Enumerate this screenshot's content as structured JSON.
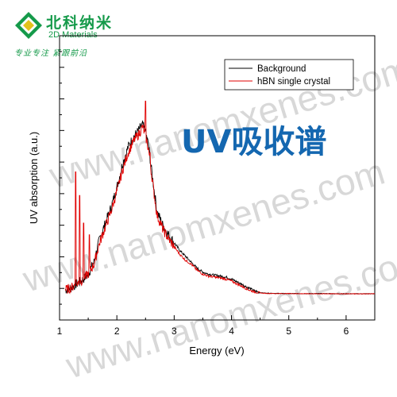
{
  "logo": {
    "brand_cn": "北科纳米",
    "brand_en": "2D Materials",
    "slogan": "专业专注 紧跟前沿",
    "colors": {
      "green": "#159a4a",
      "yellow": "#e2c21c"
    }
  },
  "watermark": {
    "text": "www.nanomxenes.com",
    "color": "#b9b9b9"
  },
  "overlay_title": {
    "text": "UV吸收谱",
    "color": "#1467b0"
  },
  "chart_data": {
    "type": "line",
    "xlabel": "Energy (eV)",
    "ylabel": "UV absorption (a.u.)",
    "xlim": [
      1,
      6.5
    ],
    "ylim": [
      0,
      1.05
    ],
    "x_ticks": [
      1,
      2,
      3,
      4,
      5,
      6
    ],
    "y_tick_labels_shown": false,
    "grid": false,
    "legend_position": "top-right",
    "series": [
      {
        "name": "Background",
        "color": "#000000",
        "x": [
          1.1,
          1.2,
          1.3,
          1.4,
          1.5,
          1.6,
          1.7,
          1.8,
          1.9,
          2.0,
          2.1,
          2.2,
          2.3,
          2.4,
          2.45,
          2.5,
          2.55,
          2.6,
          2.7,
          2.8,
          2.9,
          3.0,
          3.1,
          3.2,
          3.3,
          3.4,
          3.5,
          3.6,
          3.7,
          3.8,
          3.9,
          4.0,
          4.1,
          4.2,
          4.3,
          4.4,
          4.5,
          4.6,
          4.8,
          5.0,
          5.5,
          6.0,
          6.5
        ],
        "y": [
          0.02,
          0.03,
          0.05,
          0.07,
          0.1,
          0.16,
          0.28,
          0.36,
          0.44,
          0.54,
          0.66,
          0.75,
          0.8,
          0.84,
          0.86,
          0.82,
          0.76,
          0.64,
          0.42,
          0.35,
          0.3,
          0.26,
          0.22,
          0.19,
          0.16,
          0.13,
          0.11,
          0.1,
          0.095,
          0.09,
          0.085,
          0.075,
          0.06,
          0.045,
          0.03,
          0.015,
          0.006,
          0.003,
          0.002,
          0.001,
          0.001,
          0.0,
          0.0
        ]
      },
      {
        "name": "hBN single crystal",
        "color": "#e00000",
        "x": [
          1.1,
          1.2,
          1.3,
          1.4,
          1.5,
          1.6,
          1.7,
          1.8,
          1.9,
          2.0,
          2.1,
          2.2,
          2.3,
          2.4,
          2.45,
          2.5,
          2.55,
          2.6,
          2.7,
          2.8,
          2.9,
          3.0,
          3.1,
          3.2,
          3.3,
          3.4,
          3.5,
          3.6,
          3.7,
          3.8,
          3.9,
          4.0,
          4.1,
          4.2,
          4.3,
          4.4,
          4.5,
          4.6,
          4.8,
          5.0,
          5.5,
          6.0,
          6.5
        ],
        "y": [
          0.02,
          0.03,
          0.05,
          0.07,
          0.1,
          0.15,
          0.26,
          0.34,
          0.42,
          0.52,
          0.63,
          0.72,
          0.78,
          0.82,
          0.85,
          0.8,
          0.74,
          0.62,
          0.4,
          0.33,
          0.28,
          0.24,
          0.2,
          0.17,
          0.15,
          0.12,
          0.1,
          0.09,
          0.085,
          0.08,
          0.075,
          0.065,
          0.05,
          0.035,
          0.02,
          0.01,
          0.004,
          0.002,
          0.001,
          0.001,
          0.0,
          0.0,
          0.0
        ]
      }
    ]
  }
}
